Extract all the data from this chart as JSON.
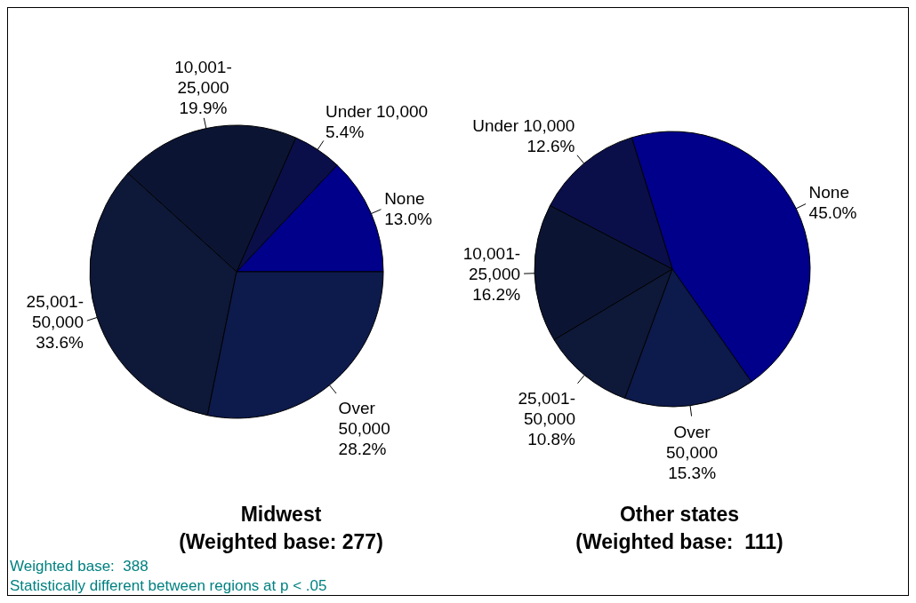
{
  "chart_data": [
    {
      "type": "pie",
      "title": "Midwest",
      "subtitle": "(Weighted base: 277)",
      "categories": [
        "None",
        "Under 10,000",
        "10,001-25,000",
        "25,001-50,000",
        "Over 50,000"
      ],
      "values": [
        13.0,
        5.4,
        19.9,
        33.6,
        28.2
      ],
      "colors": [
        "#00008b",
        "#0a0f4a",
        "#0b1533",
        "#0e1838",
        "#0d1a4c"
      ],
      "value_labels": [
        "13.0%",
        "5.4%",
        "19.9%",
        "33.6%",
        "28.2%"
      ],
      "legend": false,
      "annotations": [
        "Weighted base:  388",
        "Statistically different between regions at p < .05"
      ]
    },
    {
      "type": "pie",
      "title": "Other states",
      "subtitle": "(Weighted base:  111)",
      "categories": [
        "None",
        "Under 10,000",
        "10,001-25,000",
        "25,001-50,000",
        "Over 50,000"
      ],
      "values": [
        45.0,
        12.6,
        16.2,
        10.8,
        15.3
      ],
      "colors": [
        "#00008b",
        "#0a0f4a",
        "#0b1533",
        "#0e1838",
        "#0d1a4c"
      ],
      "value_labels": [
        "45.0%",
        "12.6%",
        "16.2%",
        "10.8%",
        "15.3%"
      ],
      "legend": false
    }
  ]
}
